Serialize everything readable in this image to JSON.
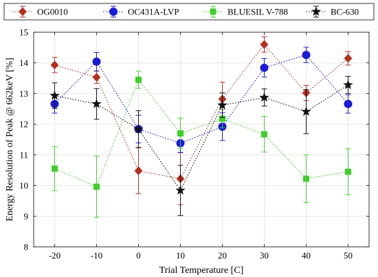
{
  "chart_data": {
    "type": "line",
    "title": "",
    "xlabel": "Trial Temperature [C]",
    "ylabel": "Energy Resolution of Peak @ 662keV [%]",
    "x": [
      -20,
      -10,
      0,
      10,
      20,
      30,
      40,
      50
    ],
    "x_tick_labels": [
      "-20",
      "-10",
      "0",
      "10",
      "20",
      "30",
      "40",
      "50"
    ],
    "y_tick_labels": [
      "8",
      "9",
      "10",
      "11",
      "12",
      "13",
      "14",
      "15"
    ],
    "xlim": [
      -25,
      55
    ],
    "ylim": [
      8,
      15
    ],
    "grid": true,
    "legend_position": "top",
    "series": [
      {
        "name": "OG0010",
        "color": "#b5301d",
        "marker": "diamond",
        "values": [
          13.93,
          13.53,
          10.48,
          10.22,
          12.82,
          14.6,
          13.02,
          14.15
        ],
        "errors": [
          0.25,
          0.2,
          0.75,
          0.85,
          0.55,
          0.25,
          0.25,
          0.22
        ]
      },
      {
        "name": "OC431A-LVP",
        "color": "#1a1adb",
        "marker": "circle",
        "values": [
          12.66,
          14.04,
          11.84,
          11.38,
          11.92,
          13.84,
          14.26,
          12.66
        ],
        "errors": [
          0.3,
          0.3,
          0.45,
          0.3,
          0.45,
          0.3,
          0.25,
          0.3
        ]
      },
      {
        "name": "BLUESIL V-788",
        "color": "#3ecf2a",
        "marker": "square",
        "values": [
          10.55,
          9.96,
          13.45,
          11.7,
          12.18,
          11.67,
          10.22,
          10.45
        ],
        "errors": [
          0.72,
          1.0,
          0.28,
          0.5,
          0.3,
          0.58,
          0.78,
          0.75
        ]
      },
      {
        "name": "BC-630",
        "color": "#111111",
        "marker": "star",
        "values": [
          12.93,
          12.66,
          11.84,
          9.84,
          12.62,
          12.87,
          12.41,
          13.28
        ],
        "errors": [
          0.42,
          0.5,
          0.6,
          0.82,
          0.4,
          0.28,
          0.72,
          0.28
        ]
      }
    ]
  }
}
